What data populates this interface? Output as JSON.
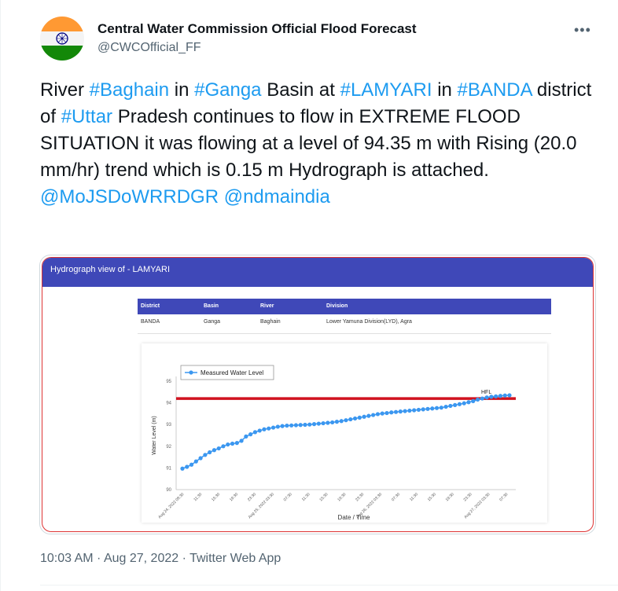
{
  "author": {
    "name": "Central Water Commission Official Flood Forecast",
    "handle": "@CWCOfficial_FF",
    "avatar_icon": "india-flag-icon"
  },
  "more_label": "•••",
  "tweet": {
    "t1": "River ",
    "h1": "#Baghain",
    "t2": " in ",
    "h2": "#Ganga",
    "t3": " Basin at ",
    "h3": "#LAMYARI",
    "t4": " in ",
    "h4": "#BANDA",
    "t5": " district of ",
    "h5": "#Uttar",
    "t6": " Pradesh continues to flow in EXTREME FLOOD SITUATION it was flowing at a level of 94.35 m with Rising (20.0 mm/hr) trend which is 0.15 m Hydrograph is attached.",
    "m1": "@MoJSDoWRRDGR",
    "t7": " ",
    "m2": "@ndmaindia"
  },
  "hydrograph": {
    "header": "Hydrograph view of - LAMYARI",
    "table": {
      "headers": [
        "District",
        "Basin",
        "River",
        "Division"
      ],
      "row": [
        "BANDA",
        "Ganga",
        "Baghain",
        "Lower Yamuna Division(LYD), Agra"
      ]
    }
  },
  "chart_data": {
    "type": "line",
    "series": [
      {
        "name": "Measured Water Level",
        "color": "#3b97f0",
        "x": [
          "Aug 24, 2022 08:30",
          "09:30",
          "10:30",
          "11:30",
          "12:30",
          "13:30",
          "14:30",
          "15:30",
          "16:30",
          "17:30",
          "18:30",
          "19:30",
          "20:30",
          "21:30",
          "22:30",
          "23:30",
          "Aug 25, 2022 00:30",
          "01:30",
          "02:30",
          "03:30",
          "04:30",
          "05:30",
          "06:30",
          "07:30",
          "08:30",
          "09:30",
          "10:30",
          "11:30",
          "12:30",
          "13:30",
          "14:30",
          "15:30",
          "16:30",
          "17:30",
          "18:30",
          "19:30",
          "20:30",
          "21:30",
          "22:30",
          "23:30",
          "Aug 26, 2022 00:30",
          "01:30",
          "02:30",
          "03:30",
          "04:30",
          "05:30",
          "06:30",
          "07:30",
          "08:30",
          "09:30",
          "10:30",
          "11:30",
          "12:30",
          "13:30",
          "14:30",
          "15:30",
          "16:30",
          "17:30",
          "18:30",
          "19:30",
          "20:30",
          "21:30",
          "22:30",
          "23:30",
          "Aug 27, 2022 00:30",
          "01:30",
          "02:30",
          "03:30",
          "04:30",
          "05:30",
          "06:30",
          "07:30",
          "08:30"
        ],
        "y": [
          90.97,
          91.05,
          91.15,
          91.3,
          91.45,
          91.6,
          91.72,
          91.82,
          91.9,
          92.0,
          92.08,
          92.12,
          92.15,
          92.25,
          92.45,
          92.55,
          92.65,
          92.72,
          92.78,
          92.82,
          92.86,
          92.9,
          92.93,
          92.95,
          92.96,
          92.97,
          92.98,
          92.99,
          93.0,
          93.02,
          93.04,
          93.06,
          93.08,
          93.1,
          93.13,
          93.16,
          93.2,
          93.24,
          93.28,
          93.32,
          93.36,
          93.4,
          93.44,
          93.48,
          93.51,
          93.53,
          93.56,
          93.58,
          93.6,
          93.62,
          93.64,
          93.66,
          93.68,
          93.7,
          93.72,
          93.74,
          93.76,
          93.78,
          93.82,
          93.86,
          93.9,
          93.94,
          93.98,
          94.03,
          94.08,
          94.15,
          94.2,
          94.25,
          94.28,
          94.3,
          94.32,
          94.34,
          94.35
        ]
      }
    ],
    "hfl": {
      "label": "HFL",
      "value": 94.2,
      "color": "#d0121f"
    },
    "x_tick_labels": [
      "Aug 24, 2022 08:30",
      "11:30",
      "15:30",
      "19:30",
      "23:30",
      "Aug 25, 2022 03:30",
      "07:30",
      "11:30",
      "15:30",
      "19:30",
      "23:30",
      "Aug 26, 2022 03:30",
      "07:30",
      "11:30",
      "15:30",
      "19:30",
      "23:30",
      "Aug 27, 2022 03:30",
      "07:30"
    ],
    "y_ticks": [
      90,
      91,
      92,
      93,
      94,
      95
    ],
    "ylim": [
      90,
      95
    ],
    "xlabel": "Date / Time",
    "ylabel": "Water Level (m)",
    "legend_position": "top-left",
    "grid": false
  },
  "footer": {
    "time": "10:03 AM",
    "sep": " · ",
    "date": "Aug 27, 2022",
    "sep2": " · ",
    "source": "Twitter Web App"
  }
}
